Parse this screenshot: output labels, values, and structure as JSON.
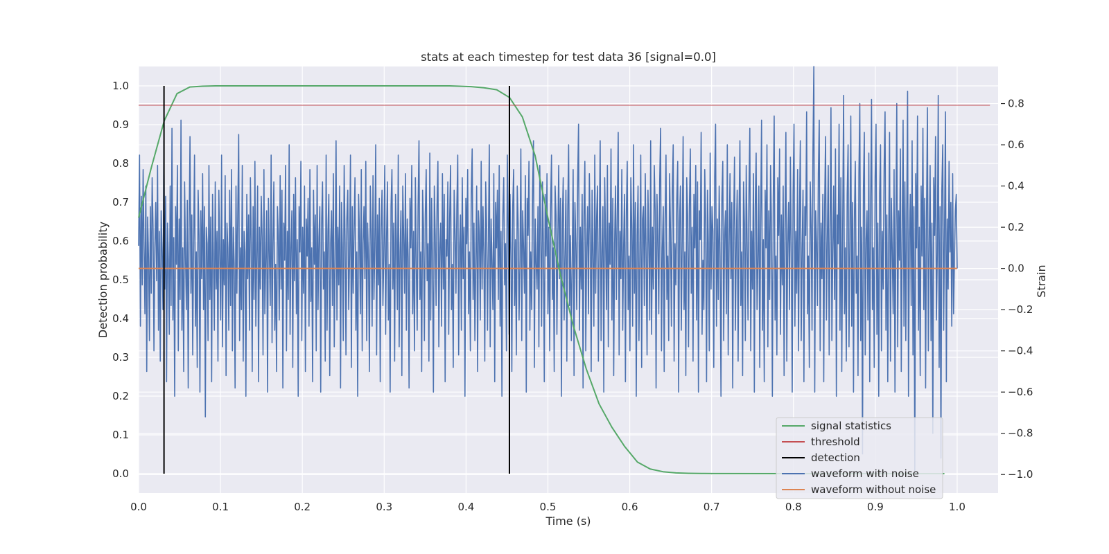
{
  "chart_data": {
    "type": "line",
    "title": "stats at each timestep for test data 36 [signal=0.0]",
    "xlabel": "Time (s)",
    "ylabel": "Detection probability",
    "ylabel_right": "Strain",
    "xlim": [
      0.0,
      1.05
    ],
    "ylim": [
      -0.05,
      1.05
    ],
    "ylim_right": [
      -1.09,
      0.98
    ],
    "grid": true,
    "legend_position": "lower-right",
    "x_ticks": [
      "0.0",
      "0.1",
      "0.2",
      "0.3",
      "0.4",
      "0.5",
      "0.6",
      "0.7",
      "0.8",
      "0.9",
      "1.0"
    ],
    "y_ticks": [
      "0.0",
      "0.1",
      "0.2",
      "0.3",
      "0.4",
      "0.5",
      "0.6",
      "0.7",
      "0.8",
      "0.9",
      "1.0"
    ],
    "y_ticks_right": [
      "−1.0",
      "−0.8",
      "−0.6",
      "−0.4",
      "−0.2",
      "0.0",
      "0.2",
      "0.4",
      "0.6",
      "0.8"
    ],
    "legend": [
      "signal statistics",
      "threshold",
      "detection",
      "waveform with noise",
      "waveform without noise"
    ],
    "colors": {
      "signal": "#55a868",
      "threshold": "#c44e52",
      "detection": "#000000",
      "noisy": "#4c72b0",
      "clean": "#dd8452",
      "plot_bg": "#eaeaf2",
      "grid": "#ffffff"
    },
    "series": [
      {
        "name": "signal statistics",
        "axis": "left",
        "x": [
          0.0,
          0.0156,
          0.0313,
          0.0469,
          0.0625,
          0.0781,
          0.0938,
          0.1094,
          0.2,
          0.3,
          0.38,
          0.4063,
          0.4219,
          0.4375,
          0.4531,
          0.4688,
          0.4844,
          0.5,
          0.5156,
          0.5313,
          0.5469,
          0.5625,
          0.5781,
          0.5938,
          0.6094,
          0.625,
          0.6406,
          0.6563,
          0.6719,
          0.6875,
          0.7031,
          0.8,
          0.9,
          0.9844
        ],
        "y": [
          0.66,
          0.79,
          0.91,
          0.98,
          0.997,
          0.999,
          1.0,
          1.0,
          1.0,
          1.0,
          1.0,
          0.998,
          0.995,
          0.99,
          0.97,
          0.92,
          0.82,
          0.66,
          0.51,
          0.38,
          0.27,
          0.18,
          0.12,
          0.07,
          0.03,
          0.012,
          0.005,
          0.002,
          0.001,
          0.0005,
          0.0002,
          0.0,
          0.0,
          0.0
        ]
      },
      {
        "name": "threshold",
        "axis": "left",
        "x": [
          0.0,
          1.04
        ],
        "y": [
          0.95,
          0.95
        ]
      },
      {
        "name": "detection",
        "axis": "left",
        "x": [
          0.031,
          0.453
        ],
        "y_from": 0.0,
        "y_to": 1.0
      },
      {
        "name": "waveform without noise",
        "axis": "right",
        "x": [
          0.0,
          1.0
        ],
        "y": [
          0.0,
          0.0
        ]
      },
      {
        "name": "waveform with noise",
        "axis": "right",
        "x_range": [
          0.0,
          1.0
        ],
        "values": [
          0.11,
          0.55,
          -0.28,
          0.35,
          -0.08,
          0.48,
          0.12,
          -0.22,
          0.4,
          -0.5,
          0.25,
          0.05,
          -0.35,
          0.3,
          -0.12,
          0.44,
          0.2,
          -0.4,
          0.1,
          0.32,
          -0.06,
          0.5,
          -0.3,
          0.18,
          -0.45,
          0.28,
          0.08,
          -0.2,
          0.62,
          -0.1,
          0.35,
          -0.55,
          0.22,
          0.04,
          -0.32,
          0.4,
          -0.18,
          0.68,
          -0.25,
          0.15,
          -0.62,
          0.3,
          0.02,
          0.5,
          -0.4,
          0.24,
          -0.15,
          0.72,
          -0.3,
          0.1,
          -0.5,
          0.42,
          0.06,
          -0.2,
          0.33,
          -0.58,
          0.18,
          0.64,
          -0.12,
          0.26,
          -0.42,
          0.12,
          0.55,
          -0.28,
          0.08,
          -0.48,
          0.38,
          0.16,
          -0.6,
          0.28,
          -0.05,
          0.46,
          -0.2,
          0.3,
          -0.72,
          0.2,
          0.12,
          -0.35,
          0.5,
          -0.15,
          0.25,
          -0.55,
          0.36,
          0.04,
          -0.3,
          0.42,
          -0.1,
          0.18,
          -0.45,
          0.38,
          0.06,
          -0.25,
          0.55,
          -0.38,
          0.14,
          -0.08,
          0.45,
          -0.52,
          0.22,
          0.1,
          -0.3,
          0.38,
          -0.18,
          0.48,
          -0.4,
          0.2,
          0.02,
          -0.58,
          0.4,
          -0.12,
          0.28,
          0.65,
          -0.35,
          0.1,
          -0.2,
          0.5,
          -0.45,
          0.18,
          0.08,
          -0.62,
          0.36,
          -0.05,
          0.26,
          -0.3,
          0.44,
          0.12,
          -0.5,
          0.3,
          -0.15,
          0.52,
          -0.28,
          0.06,
          0.4,
          -0.55,
          0.2,
          -0.1,
          0.35,
          0.15,
          -0.42,
          0.48,
          -0.22,
          0.05,
          0.28,
          -0.6,
          0.34,
          0.08,
          -0.18,
          0.55,
          -0.36,
          0.12,
          0.42,
          -0.3,
          0.02,
          -0.5,
          0.3,
          0.16,
          -0.25,
          0.45,
          -0.1,
          0.38,
          -0.58,
          0.22,
          0.04,
          0.5,
          -0.4,
          0.18,
          -0.15,
          0.6,
          -0.32,
          0.1,
          0.28,
          -0.48,
          0.36,
          -0.06,
          0.44,
          -0.22,
          0.14,
          -0.62,
          0.3,
          0.08,
          0.52,
          -0.35,
          0.2,
          -0.12,
          0.4,
          -0.5,
          0.24,
          0.06,
          0.34,
          -0.28,
          0.48,
          -0.16,
          0.1,
          -0.55,
          0.38,
          0.02,
          0.26,
          -0.4,
          0.5,
          -0.2,
          0.15,
          0.3,
          -0.6,
          0.22,
          0.42,
          -0.1,
          0.08,
          -0.45,
          0.55,
          -0.3,
          0.18,
          0.36,
          -0.52,
          0.12,
          0.28,
          -0.18,
          0.46,
          -0.38,
          0.05,
          0.62,
          -0.25,
          0.2,
          -0.08,
          0.4,
          -0.58,
          0.32,
          0.1,
          -0.35,
          0.5,
          0.14,
          -0.42,
          0.24,
          0.38,
          -0.2,
          0.06,
          0.55,
          -0.48,
          0.3,
          -0.12,
          0.2,
          0.44,
          -0.3,
          0.08,
          -0.62,
          0.36,
          0.16,
          -0.22,
          0.48,
          -0.4,
          0.12,
          0.3,
          -0.05,
          0.52,
          -0.35,
          0.22,
          0.04,
          -0.5,
          0.4,
          0.18,
          -0.28,
          0.45,
          -0.15,
          0.1,
          0.6,
          -0.42,
          0.26,
          -0.08,
          0.34,
          -0.55,
          0.2,
          0.38,
          -0.18,
          0.06,
          0.5,
          -0.32,
          0.14,
          0.42,
          -0.25,
          0.02,
          -0.6,
          0.3,
          0.48,
          -0.1,
          0.22,
          -0.45,
          0.36,
          0.12,
          -0.2,
          0.55,
          -0.38,
          0.08,
          0.28,
          -0.52,
          0.4,
          0.16,
          -0.12,
          0.46,
          -0.3,
          0.24,
          0.05,
          -0.58,
          0.34,
          0.1,
          0.5,
          -0.22,
          0.18,
          -0.4,
          0.44,
          0.02,
          -0.3,
          0.3,
          0.62,
          -0.15,
          0.08,
          -0.5,
          0.38,
          0.2,
          -0.35,
          0.26,
          0.48,
          -0.06,
          0.12,
          -0.45,
          0.56,
          -0.25,
          0.34,
          0.04,
          -0.6,
          0.4,
          0.16,
          -0.18,
          0.3,
          0.52,
          -0.38,
          0.1,
          0.22,
          -0.28,
          0.46,
          -0.1,
          0.36,
          -0.55,
          0.14,
          0.06,
          0.42,
          -0.32,
          0.24,
          0.5,
          -0.2,
          0.02,
          -0.48,
          0.38,
          0.18,
          -0.12,
          0.3,
          0.55,
          -0.42,
          0.1,
          0.26,
          -0.3,
          0.44,
          -0.05,
          0.2,
          -0.62,
          0.34,
          0.12,
          0.48,
          -0.22,
          0.08,
          -0.4,
          0.36,
          0.58,
          -0.15,
          0.22,
          -0.35,
          0.04,
          0.4,
          -0.5,
          0.28,
          0.16,
          -0.25,
          0.52,
          -0.1,
          0.3,
          0.06,
          -0.45,
          0.42,
          0.2,
          -0.3,
          0.14,
          0.6,
          -0.38,
          0.24,
          0.02,
          -0.2,
          0.46,
          -0.55,
          0.32,
          0.1,
          0.38,
          -0.15,
          0.5,
          -0.28,
          0.18,
          -0.62,
          0.26,
          0.44,
          -0.08,
          0.12,
          -0.4,
          0.55,
          0.2,
          -0.32,
          0.36,
          0.06,
          -0.5,
          0.3,
          0.48,
          -0.18,
          0.14,
          -0.42,
          0.4,
          0.22,
          -0.25,
          0.04,
          0.58,
          -0.35,
          0.28,
          0.1,
          -0.12,
          0.45,
          -0.6,
          0.34,
          0.16,
          0.52,
          -0.3,
          0.08,
          -0.2,
          0.38,
          0.62,
          -0.48,
          0.24,
          0.02,
          -0.1,
          0.3,
          -0.38,
          0.5,
          0.18,
          -0.28,
          0.42,
          0.12,
          -0.55,
          0.36,
          0.06,
          0.46,
          -0.22,
          0.2,
          -0.4,
          0.3,
          0.55,
          -0.15,
          0.1,
          -0.5,
          0.4,
          0.26,
          -0.32,
          0.14,
          0.5,
          -0.05,
          0.34,
          -0.62,
          0.22,
          0.44,
          -0.25,
          0.08,
          0.38,
          -0.45,
          0.28,
          0.6,
          -0.18,
          0.16,
          -0.35,
          0.04,
          0.48,
          -0.52,
          0.32,
          0.12,
          -0.2,
          0.42,
          0.7,
          -0.3,
          0.2,
          -0.1,
          0.36,
          -0.58,
          0.26,
          0.52,
          -0.4,
          0.1,
          0.3,
          -0.22,
          0.46,
          0.16,
          -0.5,
          0.38,
          0.06,
          -0.28,
          0.55,
          -0.12,
          0.24,
          0.4,
          -0.45,
          0.18,
          0.62,
          -0.35,
          0.08,
          0.3,
          -0.6,
          0.44,
          0.14,
          -0.2,
          0.5,
          -0.38,
          0.22,
          0.02,
          0.58,
          -0.25,
          0.34,
          -0.52,
          0.12,
          0.4,
          -0.15,
          0.28,
          0.66,
          -0.42,
          0.18,
          -0.05,
          0.48,
          -0.3,
          0.1,
          0.36,
          -0.55,
          0.26,
          0.52,
          -0.2,
          0.06,
          -0.4,
          0.44,
          0.2,
          -0.28,
          0.6,
          -0.12,
          0.32,
          -0.62,
          0.16,
          0.4,
          -0.35,
          0.08,
          0.55,
          -0.48,
          0.24,
          0.3,
          -0.18,
          0.46,
          0.04,
          -0.42,
          0.38,
          0.12,
          -0.25,
          0.62,
          -0.32,
          0.2,
          -0.1,
          0.5,
          0.28,
          -0.58,
          0.36,
          0.14,
          -0.22,
          0.42,
          0.68,
          -0.4,
          0.1,
          0.3,
          -0.5,
          0.24,
          0.55,
          -0.15,
          0.06,
          -0.35,
          0.46,
          0.18,
          -0.28,
          0.38,
          0.6,
          -0.45,
          0.12,
          -0.08,
          0.34,
          0.52,
          -0.6,
          0.22,
          0.4,
          -0.3,
          0.16,
          0.64,
          -0.2,
          0.08,
          -0.52,
          0.44,
          0.26,
          -0.38,
          0.3,
          0.58,
          -0.12,
          0.2,
          -0.45,
          0.36,
          0.1,
          0.5,
          -0.25,
          0.42,
          -0.6,
          0.28,
          0.14,
          0.66,
          -0.32,
          0.04,
          -0.2,
          0.48,
          0.22,
          -0.55,
          0.38,
          0.12,
          -0.4,
          0.56,
          -0.1,
          0.3,
          0.18,
          -0.48,
          0.44,
          0.7,
          -0.28,
          0.24,
          -0.15,
          0.4,
          0.06,
          -0.62,
          0.34,
          0.52,
          -0.35,
          0.16,
          0.28,
          -0.22,
          0.6,
          -0.42,
          0.1,
          0.46,
          -0.05,
          0.32,
          -0.58,
          0.2,
          0.54,
          -0.3,
          0.14,
          0.38,
          -0.45,
          0.26,
          0.62,
          -0.18,
          0.08,
          -0.52,
          0.42,
          0.22,
          -0.35,
          0.5,
          0.12,
          -0.25,
          0.36,
          0.68,
          -0.4,
          0.18,
          -0.1,
          0.46,
          -0.6,
          0.3,
          0.56,
          -0.2,
          0.04,
          0.4,
          -0.48,
          0.24,
          0.72,
          -0.3,
          0.14,
          -0.55,
          0.38,
          0.1,
          0.6,
          -0.38,
          0.28,
          -0.15,
          0.5,
          0.2,
          -0.62,
          0.34,
          0.74,
          -0.25,
          0.06,
          -0.42,
          0.44,
          0.16,
          0.58,
          -0.32,
          0.26,
          -0.08,
          0.4,
          -0.52,
          0.22,
          0.66,
          -0.45,
          0.12,
          0.32,
          -0.2,
          0.54,
          0.08,
          -0.6,
          0.36,
          0.7,
          -0.28,
          0.18,
          -0.12,
          0.48,
          -0.4,
          0.24,
          0.62,
          -0.35,
          0.1,
          0.38,
          -0.55,
          0.3,
          0.16,
          0.76,
          -0.22,
          0.06,
          -0.48,
          0.42,
          0.2,
          -0.3,
          0.56,
          0.98,
          -0.6,
          0.28,
          0.12,
          -0.18,
          0.46,
          0.72,
          -0.4,
          0.22,
          -0.05,
          0.36,
          -0.55,
          0.3,
          0.64,
          -0.25,
          0.14,
          0.5,
          -0.42,
          0.18,
          0.78,
          -0.35,
          0.08,
          0.4,
          -0.15,
          0.58,
          -0.62,
          0.26,
          0.12,
          0.7,
          -0.3,
          0.44,
          -0.5,
          0.2,
          0.84,
          -0.22,
          0.1,
          -0.45,
          0.36,
          0.6,
          -0.38,
          0.16,
          0.74,
          -0.28,
          0.32,
          -0.6,
          0.24,
          0.52,
          -0.12,
          0.06,
          -0.52,
          0.46,
          0.8,
          -0.35,
          0.2,
          -0.9,
          0.38,
          0.66,
          -0.42,
          0.14,
          0.28,
          -0.25,
          0.56,
          -0.55,
          0.3,
          0.82,
          -0.2,
          0.1,
          -0.48,
          0.44,
          0.7,
          -0.32,
          0.22,
          -0.62,
          0.36,
          0.6,
          -0.4,
          0.18,
          -0.1,
          0.5,
          0.76,
          -0.3,
          0.26,
          -0.55,
          0.12,
          0.66,
          -0.45,
          0.34,
          0.08,
          -0.22,
          0.48,
          -0.6,
          0.2,
          0.8,
          -0.38,
          0.28,
          0.04,
          0.58,
          -0.5,
          0.16,
          0.72,
          -0.28,
          0.42,
          -0.35,
          0.24,
          0.86,
          -0.62,
          0.14,
          0.36,
          -0.18,
          0.62,
          -0.42,
          0.3,
          -0.98,
          0.46,
          0.1,
          0.74,
          -0.3,
          0.2,
          -0.52,
          0.4,
          0.06,
          0.68,
          -0.2,
          0.34,
          -0.58,
          0.26,
          0.78,
          -0.4,
          0.12,
          0.5,
          -0.35,
          0.22,
          -0.8,
          0.44,
          0.16,
          0.64,
          -0.25,
          0.08,
          0.84,
          -0.48,
          0.3,
          -0.92,
          0.38,
          0.6,
          -0.3,
          0.18,
          0.76,
          -0.55,
          0.24,
          -0.1,
          0.52,
          0.08,
          0.32,
          -0.28,
          0.46,
          -0.22,
          0.05,
          0.28,
          0.36,
          0.0
        ]
      }
    ]
  }
}
